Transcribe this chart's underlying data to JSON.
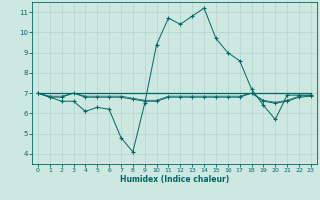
{
  "xlabel": "Humidex (Indice chaleur)",
  "background_color": "#cce8e0",
  "grid_color": "#b8d8d0",
  "line_color": "#006666",
  "xlim": [
    -0.5,
    23.5
  ],
  "ylim": [
    3.5,
    11.5
  ],
  "xticks": [
    0,
    1,
    2,
    3,
    4,
    5,
    6,
    7,
    8,
    9,
    10,
    11,
    12,
    13,
    14,
    15,
    16,
    17,
    18,
    19,
    20,
    21,
    22,
    23
  ],
  "yticks": [
    4,
    5,
    6,
    7,
    8,
    9,
    10,
    11
  ],
  "series": [
    [
      7.0,
      6.8,
      6.6,
      6.6,
      6.1,
      6.3,
      6.2,
      4.8,
      4.1,
      6.5,
      9.4,
      10.7,
      10.4,
      10.8,
      11.2,
      9.7,
      9.0,
      8.6,
      7.2,
      6.4,
      5.7,
      6.9,
      6.9,
      6.9
    ],
    [
      7.0,
      7.0,
      7.0,
      7.0,
      7.0,
      7.0,
      7.0,
      7.0,
      7.0,
      7.0,
      7.0,
      7.0,
      7.0,
      7.0,
      7.0,
      7.0,
      7.0,
      7.0,
      7.0,
      7.0,
      7.0,
      7.0,
      7.0,
      7.0
    ],
    [
      7.0,
      6.8,
      6.8,
      7.0,
      6.8,
      6.8,
      6.8,
      6.8,
      6.7,
      6.6,
      6.6,
      6.8,
      6.8,
      6.8,
      6.8,
      6.8,
      6.8,
      6.8,
      7.0,
      6.6,
      6.5,
      6.6,
      6.8,
      6.85
    ],
    [
      7.0,
      6.85,
      6.85,
      7.0,
      6.85,
      6.85,
      6.85,
      6.85,
      6.75,
      6.65,
      6.65,
      6.85,
      6.85,
      6.85,
      6.85,
      6.85,
      6.85,
      6.85,
      7.0,
      6.65,
      6.55,
      6.65,
      6.85,
      6.9
    ]
  ]
}
